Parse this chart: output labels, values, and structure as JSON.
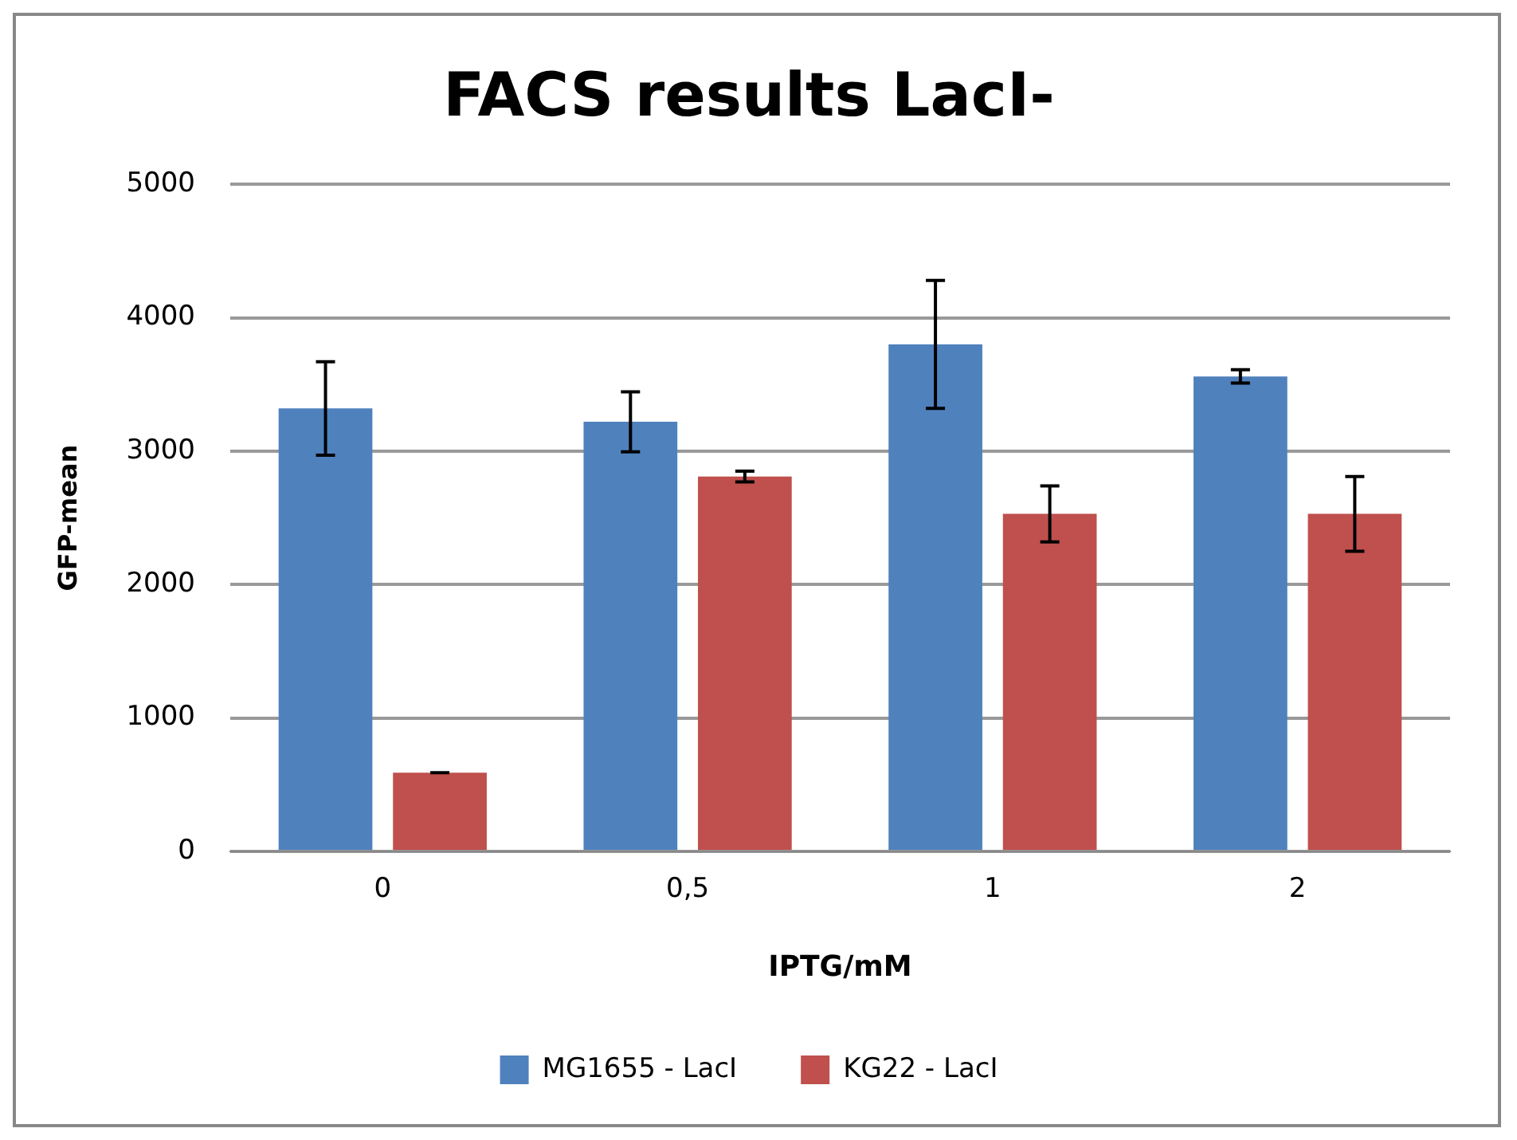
{
  "chart_data": {
    "type": "bar",
    "title": "FACS results LacI-",
    "xlabel": "IPTG/mM",
    "ylabel": "GFP-mean",
    "categories": [
      "0",
      "0,5",
      "1",
      "2"
    ],
    "series": [
      {
        "name": "MG1655 - LacI",
        "color": "#4f81bd",
        "values": [
          3320,
          3220,
          3800,
          3560
        ],
        "errors": [
          350,
          225,
          480,
          50
        ]
      },
      {
        "name": "KG22 - LacI",
        "color": "#c0504d",
        "values": [
          590,
          2810,
          2530,
          2530
        ],
        "errors": [
          0,
          40,
          210,
          280
        ]
      }
    ],
    "ylim": [
      0,
      5000
    ],
    "yticks": [
      0,
      1000,
      2000,
      3000,
      4000,
      5000
    ],
    "grid": "y",
    "legend": "bottom"
  }
}
